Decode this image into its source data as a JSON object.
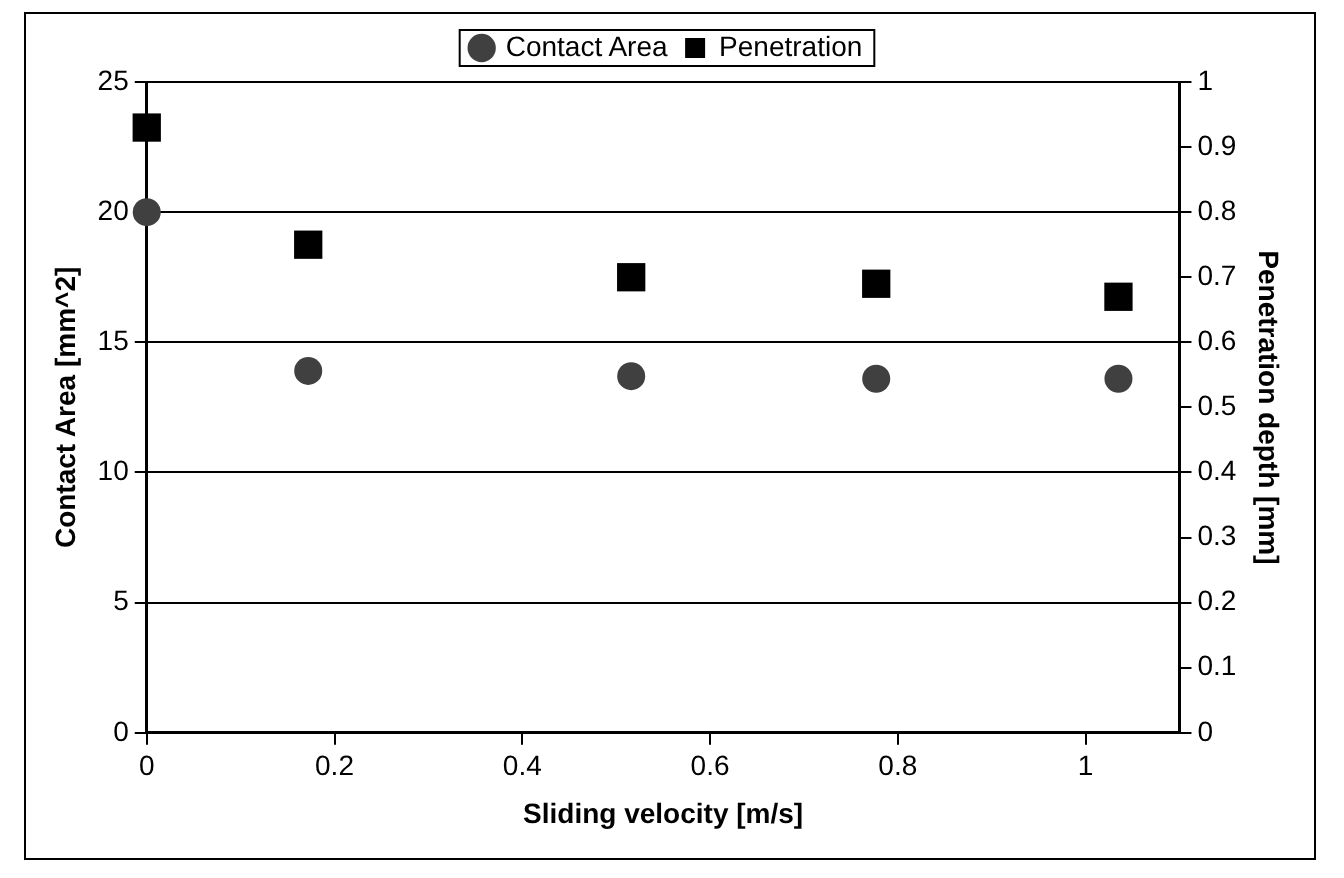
{
  "chart_data": {
    "type": "scatter",
    "xlabel": "Sliding velocity [m/s]",
    "ylabel": "Contact Area [mm^2]",
    "y2label": "Penetration depth [mm]",
    "x": [
      0,
      0.172,
      0.516,
      0.777,
      1.035
    ],
    "series": [
      {
        "name": "Contact Area",
        "color": "#404040",
        "marker": "circle",
        "values": [
          20,
          13.9,
          13.7,
          13.6,
          13.6
        ]
      },
      {
        "name": "Penetration",
        "color": "#000000",
        "marker": "square",
        "axis": "y2",
        "values": [
          0.93,
          0.75,
          0.7,
          0.69,
          0.67
        ]
      }
    ],
    "xlim": [
      0,
      1.1
    ],
    "xticks": [
      0,
      0.2,
      0.4,
      0.6,
      0.8,
      1
    ],
    "ylim": [
      0,
      25
    ],
    "yticks": [
      0,
      5,
      10,
      15,
      20,
      25
    ],
    "y2lim": [
      0,
      1
    ],
    "y2ticks": [
      0,
      0.1,
      0.2,
      0.3,
      0.4,
      0.5,
      0.6,
      0.7,
      0.8,
      0.9,
      1
    ],
    "grid": "y",
    "legend": "top"
  }
}
